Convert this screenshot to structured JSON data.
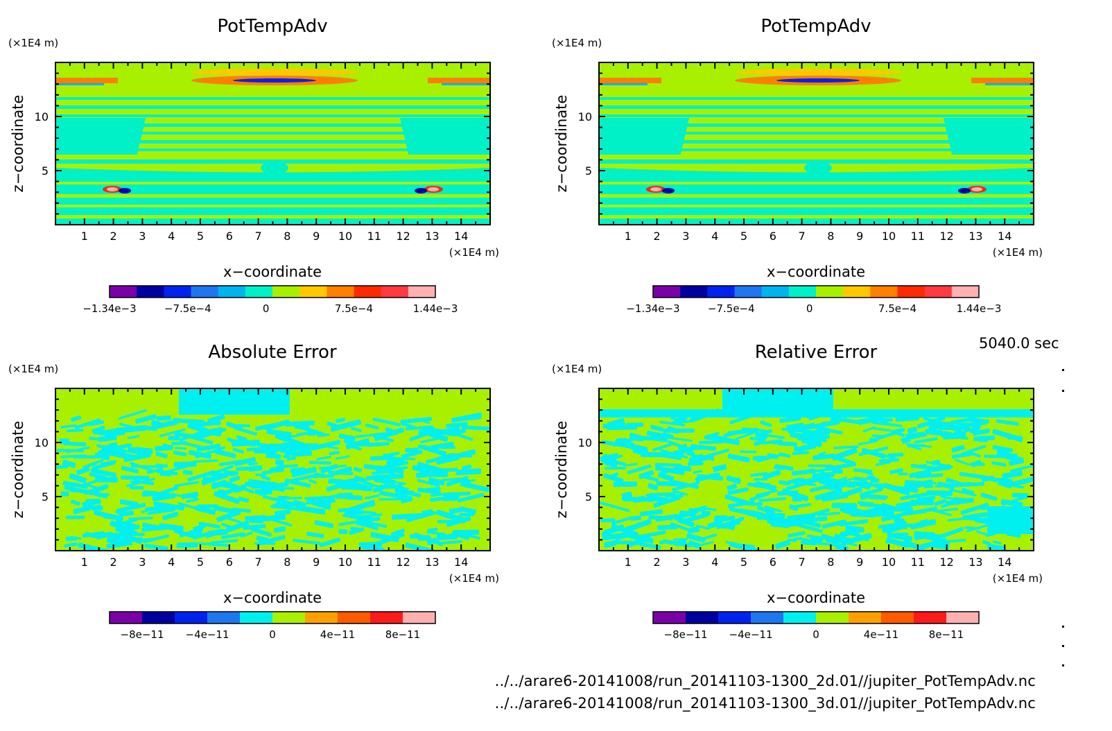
{
  "figure": {
    "time_label": "5040.0 sec",
    "file_paths": [
      "../../arare6-20141008/run_20141103-1300_2d.01//jupiter_PotTempAdv.nc",
      "../../arare6-20141008/run_20141103-1300_3d.01//jupiter_PotTempAdv.nc"
    ]
  },
  "chart_data": [
    {
      "type": "heatmap",
      "title": "PotTempAdv",
      "xlabel": "x−coordinate",
      "ylabel": "z−coordinate",
      "x_unit": "(×1E4 m)",
      "y_unit": "(×1E4 m)",
      "xlim": [
        0,
        15
      ],
      "ylim": [
        0,
        15
      ],
      "x_ticks": [
        "1",
        "2",
        "3",
        "4",
        "5",
        "6",
        "7",
        "8",
        "9",
        "10",
        "11",
        "12",
        "13",
        "14"
      ],
      "y_ticks": [
        "5",
        "10"
      ],
      "colorbar": {
        "colors": [
          "#7a00a8",
          "#0000a0",
          "#0022ee",
          "#1f77f0",
          "#00b4ee",
          "#00f0c8",
          "#a8f000",
          "#ffc800",
          "#ff7f00",
          "#ff2a00",
          "#ff3a40",
          "#ffb0b0"
        ],
        "labels": [
          {
            "text": "−1.34e−3",
            "pos": 0.0
          },
          {
            "text": "−7.5e−4",
            "pos": 0.24
          },
          {
            "text": "0",
            "pos": 0.48
          },
          {
            "text": "7.5e−4",
            "pos": 0.75
          },
          {
            "text": "1.44e−3",
            "pos": 1.0
          }
        ]
      }
    },
    {
      "type": "heatmap",
      "title": "PotTempAdv",
      "xlabel": "x−coordinate",
      "ylabel": "z−coordinate",
      "x_unit": "(×1E4 m)",
      "y_unit": "(×1E4 m)",
      "xlim": [
        0,
        15
      ],
      "ylim": [
        0,
        15
      ],
      "x_ticks": [
        "1",
        "2",
        "3",
        "4",
        "5",
        "6",
        "7",
        "8",
        "9",
        "10",
        "11",
        "12",
        "13",
        "14"
      ],
      "y_ticks": [
        "5",
        "10"
      ],
      "colorbar": {
        "colors": [
          "#7a00a8",
          "#0000a0",
          "#0022ee",
          "#1f77f0",
          "#00b4ee",
          "#00f0c8",
          "#a8f000",
          "#ffc800",
          "#ff7f00",
          "#ff2a00",
          "#ff3a40",
          "#ffb0b0"
        ],
        "labels": [
          {
            "text": "−1.34e−3",
            "pos": 0.0
          },
          {
            "text": "−7.5e−4",
            "pos": 0.24
          },
          {
            "text": "0",
            "pos": 0.48
          },
          {
            "text": "7.5e−4",
            "pos": 0.75
          },
          {
            "text": "1.44e−3",
            "pos": 1.0
          }
        ]
      }
    },
    {
      "type": "heatmap",
      "title": "Absolute Error",
      "xlabel": "x−coordinate",
      "ylabel": "z−coordinate",
      "x_unit": "(×1E4 m)",
      "y_unit": "(×1E4 m)",
      "xlim": [
        0,
        15
      ],
      "ylim": [
        0,
        15
      ],
      "x_ticks": [
        "1",
        "2",
        "3",
        "4",
        "5",
        "6",
        "7",
        "8",
        "9",
        "10",
        "11",
        "12",
        "13",
        "14"
      ],
      "y_ticks": [
        "5",
        "10"
      ],
      "colorbar": {
        "colors": [
          "#7a00a8",
          "#0000a0",
          "#0022ee",
          "#1f77f0",
          "#00f0f0",
          "#a8f000",
          "#ffa000",
          "#ff5a00",
          "#ff1a1a",
          "#ffb0b0"
        ],
        "labels": [
          {
            "text": "−8e−11",
            "pos": 0.1
          },
          {
            "text": "−4e−11",
            "pos": 0.3
          },
          {
            "text": "0",
            "pos": 0.5
          },
          {
            "text": "4e−11",
            "pos": 0.7
          },
          {
            "text": "8e−11",
            "pos": 0.9
          }
        ]
      }
    },
    {
      "type": "heatmap",
      "title": "Relative Error",
      "xlabel": "x−coordinate",
      "ylabel": "z−coordinate",
      "x_unit": "(×1E4 m)",
      "y_unit": "(×1E4 m)",
      "xlim": [
        0,
        15
      ],
      "ylim": [
        0,
        15
      ],
      "x_ticks": [
        "1",
        "2",
        "3",
        "4",
        "5",
        "6",
        "7",
        "8",
        "9",
        "10",
        "11",
        "12",
        "13",
        "14"
      ],
      "y_ticks": [
        "5",
        "10"
      ],
      "colorbar": {
        "colors": [
          "#7a00a8",
          "#0000a0",
          "#0022ee",
          "#1f77f0",
          "#00f0f0",
          "#a8f000",
          "#ffa000",
          "#ff5a00",
          "#ff1a1a",
          "#ffb0b0"
        ],
        "labels": [
          {
            "text": "−8e−11",
            "pos": 0.1
          },
          {
            "text": "−4e−11",
            "pos": 0.3
          },
          {
            "text": "0",
            "pos": 0.5
          },
          {
            "text": "4e−11",
            "pos": 0.7
          },
          {
            "text": "8e−11",
            "pos": 0.9
          }
        ]
      }
    }
  ]
}
